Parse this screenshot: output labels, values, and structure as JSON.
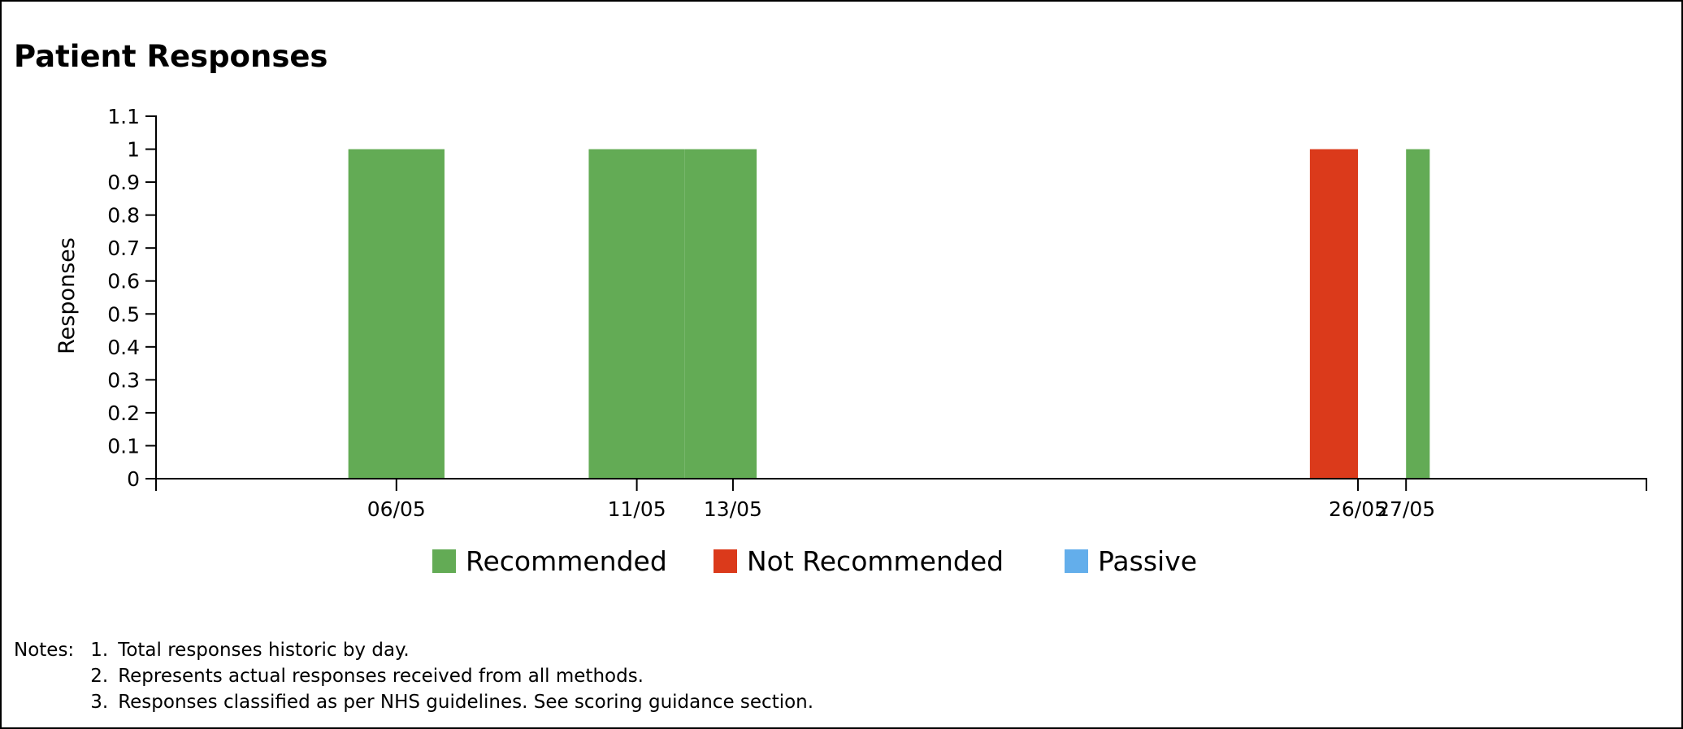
{
  "chart_data": {
    "type": "bar",
    "title": "Patient Responses",
    "xlabel": "",
    "ylabel": "Responses",
    "ylim": [
      0,
      1.1
    ],
    "yticks": [
      "0",
      "0.1",
      "0.2",
      "0.3",
      "0.4",
      "0.5",
      "0.6",
      "0.7",
      "0.8",
      "0.9",
      "1",
      "1.1"
    ],
    "xlim": [
      "2024-05-01",
      "2024-06-01"
    ],
    "categories": [
      "06/05",
      "11/05",
      "13/05",
      "26/05",
      "27/05"
    ],
    "x_dates": [
      "2024-05-06",
      "2024-05-11",
      "2024-05-13",
      "2024-05-26",
      "2024-05-27"
    ],
    "series": [
      {
        "name": "Recommended",
        "color": "#63ab55",
        "values": [
          1,
          1,
          1,
          0,
          1
        ]
      },
      {
        "name": "Not Recommended",
        "color": "#db3a1b",
        "values": [
          0,
          0,
          0,
          1,
          0
        ]
      },
      {
        "name": "Passive",
        "color": "#63aeeb",
        "values": [
          0,
          0,
          0,
          0,
          0
        ]
      }
    ],
    "legend_position": "bottom",
    "grid": false
  },
  "notes": {
    "label": "Notes:",
    "items": [
      {
        "num": "1.",
        "text": "Total responses historic by day."
      },
      {
        "num": "2.",
        "text": "Represents actual responses received from all methods."
      },
      {
        "num": "3.",
        "text": "Responses classified as per NHS guidelines. See scoring guidance section."
      }
    ]
  }
}
